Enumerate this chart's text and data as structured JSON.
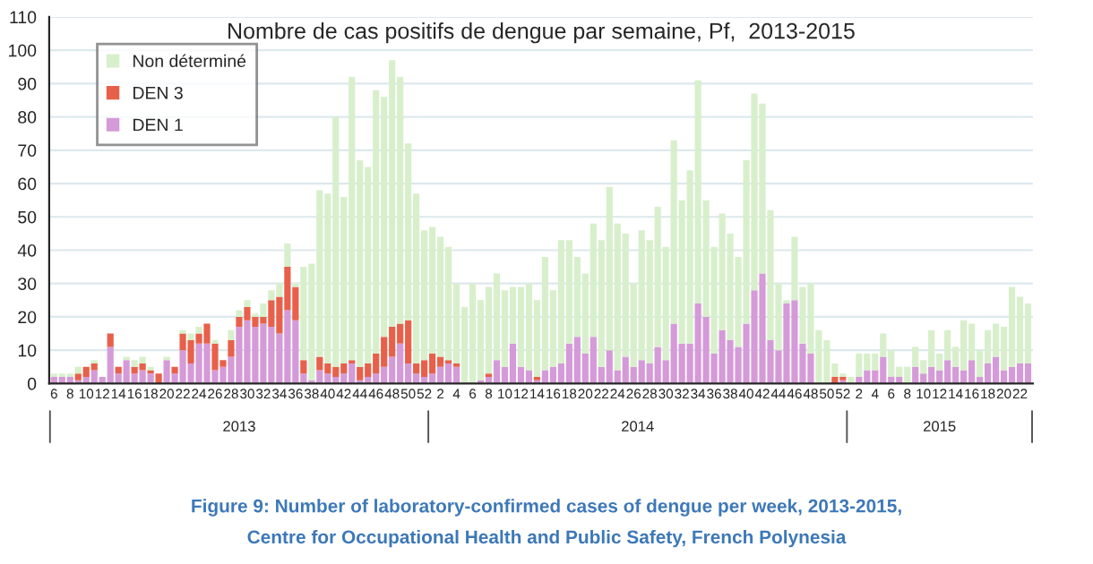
{
  "chart_data": {
    "type": "bar",
    "stacked": true,
    "title": "Nombre de cas positifs de dengue par semaine, Pf,  2013-2015",
    "categories": [
      "6",
      null,
      "8",
      null,
      "10",
      null,
      "12",
      null,
      "14",
      null,
      "16",
      null,
      "18",
      null,
      "20",
      null,
      "22",
      null,
      "24",
      null,
      "26",
      null,
      "28",
      null,
      "30",
      null,
      "32",
      null,
      "34",
      null,
      "36",
      null,
      "38",
      null,
      "40",
      null,
      "42",
      null,
      "44",
      null,
      "46",
      null,
      "48",
      null,
      "50",
      null,
      "52",
      null,
      "2",
      null,
      "4",
      null,
      "6",
      null,
      "8",
      null,
      "10",
      null,
      "12",
      null,
      "14",
      null,
      "16",
      null,
      "18",
      null,
      "20",
      null,
      "22",
      null,
      "24",
      null,
      "26",
      null,
      "28",
      null,
      "30",
      null,
      "32",
      null,
      "34",
      null,
      "36",
      null,
      "38",
      null,
      "40",
      null,
      "42",
      null,
      "44",
      null,
      "46",
      null,
      "48",
      null,
      "50",
      null,
      "52",
      null,
      "2",
      null,
      "4",
      null,
      "6",
      null,
      "8",
      null,
      "10",
      null,
      "12",
      null,
      "14",
      null,
      "16",
      null,
      "18",
      null,
      "20",
      null,
      "22",
      null
    ],
    "series": [
      {
        "name": "DEN 1",
        "color": "#d59ad8",
        "values": [
          2,
          2,
          2,
          1,
          2,
          4,
          2,
          11,
          3,
          7,
          3,
          4,
          3,
          0,
          7,
          3,
          10,
          6,
          12,
          12,
          4,
          5,
          8,
          17,
          19,
          17,
          18,
          17,
          15,
          22,
          19,
          3,
          1,
          4,
          3,
          2,
          3,
          6,
          1,
          2,
          3,
          5,
          8,
          12,
          6,
          3,
          2,
          3,
          5,
          6,
          5,
          0,
          0,
          1,
          2,
          7,
          5,
          12,
          5,
          4,
          1,
          4,
          5,
          6,
          12,
          14,
          9,
          14,
          5,
          10,
          4,
          8,
          5,
          7,
          6,
          11,
          7,
          18,
          12,
          12,
          24,
          20,
          9,
          16,
          13,
          11,
          18,
          28,
          33,
          13,
          10,
          24,
          25,
          12,
          9,
          0,
          0,
          0,
          1,
          0,
          2,
          4,
          4,
          8,
          2,
          2,
          0,
          5,
          3,
          5,
          4,
          7,
          5,
          4,
          7,
          2,
          6,
          8,
          4,
          5,
          6,
          6
        ]
      },
      {
        "name": "DEN 3",
        "color": "#e8604a",
        "values": [
          0,
          0,
          0,
          2,
          3,
          2,
          0,
          4,
          2,
          0,
          2,
          2,
          1,
          3,
          0,
          2,
          5,
          7,
          3,
          6,
          8,
          2,
          5,
          3,
          4,
          3,
          2,
          8,
          11,
          13,
          10,
          4,
          0,
          4,
          3,
          3,
          3,
          1,
          4,
          4,
          6,
          9,
          9,
          6,
          13,
          3,
          5,
          6,
          3,
          1,
          1,
          0,
          0,
          0,
          1,
          0,
          0,
          0,
          0,
          0,
          1,
          0,
          0,
          0,
          0,
          0,
          0,
          0,
          0,
          0,
          0,
          0,
          0,
          0,
          0,
          0,
          0,
          0,
          0,
          0,
          0,
          0,
          0,
          0,
          0,
          0,
          0,
          0,
          0,
          0,
          0,
          0,
          0,
          0,
          0,
          0,
          0,
          2,
          1,
          0,
          0,
          0,
          0,
          0,
          0,
          0,
          0,
          0,
          0,
          0,
          0,
          0,
          0,
          0,
          0,
          0,
          0,
          0,
          0,
          0,
          0,
          0
        ]
      },
      {
        "name": "Non déterminé",
        "color": "#d8efcc",
        "values": [
          1,
          1,
          1,
          2,
          0,
          1,
          0,
          0,
          0,
          1,
          2,
          2,
          1,
          0,
          1,
          0,
          1,
          2,
          2,
          0,
          1,
          0,
          3,
          2,
          2,
          1,
          4,
          3,
          4,
          7,
          1,
          28,
          35,
          50,
          51,
          75,
          50,
          85,
          62,
          59,
          79,
          72,
          80,
          74,
          53,
          51,
          39,
          38,
          36,
          34,
          24,
          23,
          30,
          24,
          26,
          26,
          23,
          17,
          24,
          26,
          23,
          34,
          23,
          37,
          31,
          24,
          24,
          34,
          38,
          49,
          44,
          37,
          25,
          39,
          37,
          42,
          34,
          55,
          43,
          52,
          67,
          35,
          32,
          35,
          32,
          27,
          49,
          59,
          51,
          39,
          20,
          1,
          19,
          17,
          21,
          16,
          13,
          4,
          1,
          2,
          7,
          5,
          5,
          7,
          8,
          3,
          5,
          6,
          4,
          11,
          5,
          9,
          6,
          15,
          11,
          8,
          10,
          10,
          13,
          24,
          20,
          18
        ]
      }
    ],
    "ylim": [
      0,
      110
    ],
    "yticks": [
      0,
      10,
      20,
      30,
      40,
      50,
      60,
      70,
      80,
      90,
      100,
      110
    ],
    "grid": "y",
    "legend": "top left",
    "annotations": [
      "2013",
      "2014",
      "2015",
      "Figure 9: Number of laboratory-confirmed cases of dengue per week, 2013-2015,",
      "Centre for Occupational Health and Public Safety, French Polynesia"
    ]
  }
}
